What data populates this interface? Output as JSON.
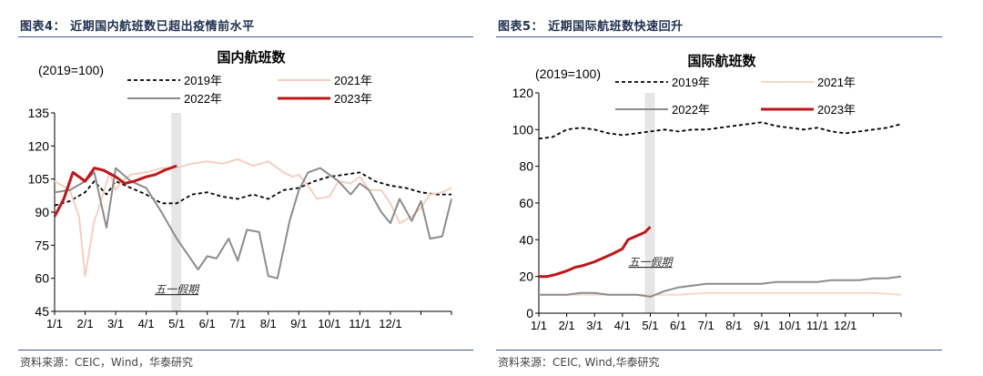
{
  "left": {
    "caption": "图表4：  近期国内航班数已超出疫情前水平",
    "source": "资料来源：CEIC，Wind，华泰研究",
    "chart_data": {
      "type": "line",
      "title": "国内航班数",
      "unit_note": "(2019=100)",
      "ylim": [
        45,
        135
      ],
      "yticks": [
        "135",
        "120",
        "105",
        "90",
        "75",
        "60",
        "45"
      ],
      "xticks": [
        "1/1",
        "2/1",
        "3/1",
        "4/1",
        "5/1",
        "6/1",
        "7/1",
        "8/1",
        "9/1",
        "10/1",
        "11/1",
        "12/1"
      ],
      "annotation": "五一假期",
      "highlight_month": 4.0,
      "series": [
        {
          "name": "2019年",
          "color": "#000000",
          "style": "dashed",
          "x": [
            0,
            0.5,
            1,
            1.3,
            1.7,
            2,
            2.5,
            3,
            3.5,
            4,
            4.5,
            5,
            5.5,
            6,
            6.5,
            7,
            7.5,
            8,
            8.5,
            9,
            9.5,
            10,
            10.5,
            11,
            11.5,
            12,
            12.5,
            13
          ],
          "y": [
            93,
            95,
            99,
            104,
            98,
            104,
            101,
            98,
            94,
            94,
            98,
            99,
            97,
            96,
            98,
            96,
            100,
            101,
            104,
            106,
            107,
            108,
            104,
            102,
            101,
            99,
            98,
            98
          ]
        },
        {
          "name": "2021年",
          "color": "#f5cfc0",
          "style": "solid",
          "x": [
            0,
            0.5,
            0.8,
            1,
            1.3,
            1.5,
            1.8,
            2,
            2.2,
            2.5,
            3,
            3.5,
            4,
            4.5,
            5,
            5.5,
            6,
            6.5,
            7,
            7.5,
            7.8,
            8,
            8.3,
            8.6,
            9,
            9.3,
            9.7,
            10,
            10.3,
            10.7,
            11,
            11.3,
            11.7,
            12,
            12.3,
            12.7,
            13
          ],
          "y": [
            104,
            100,
            88,
            61,
            86,
            94,
            108,
            100,
            104,
            107,
            108,
            110,
            110,
            112,
            113,
            112,
            114,
            111,
            113,
            108,
            106,
            107,
            102,
            96,
            97,
            104,
            103,
            106,
            100,
            100,
            94,
            85,
            88,
            92,
            98,
            99,
            101
          ]
        },
        {
          "name": "2022年",
          "color": "#8c8c8c",
          "style": "solid",
          "x": [
            0,
            0.5,
            1,
            1.3,
            1.7,
            2,
            2.5,
            3,
            3.5,
            4,
            4.3,
            4.7,
            5,
            5.3,
            5.7,
            6,
            6.3,
            6.7,
            7,
            7.3,
            7.7,
            8,
            8.3,
            8.7,
            9,
            9.3,
            9.7,
            10,
            10.3,
            10.7,
            11,
            11.3,
            11.7,
            12,
            12.3,
            12.7,
            13
          ],
          "y": [
            99,
            100,
            104,
            108,
            83,
            110,
            104,
            101,
            90,
            78,
            72,
            64,
            70,
            69,
            78,
            68,
            82,
            81,
            61,
            60,
            86,
            100,
            108,
            110,
            107,
            104,
            98,
            103,
            100,
            90,
            85,
            96,
            86,
            95,
            78,
            79,
            96
          ]
        },
        {
          "name": "2023年",
          "color": "#c0161a",
          "style": "solid",
          "bold": true,
          "x": [
            0,
            0.3,
            0.6,
            1,
            1.3,
            1.6,
            2,
            2.3,
            2.6,
            3,
            3.3,
            3.6,
            4
          ],
          "y": [
            88,
            96,
            108,
            104,
            110,
            109,
            106,
            103,
            104,
            106,
            107,
            109,
            111
          ]
        }
      ]
    }
  },
  "right": {
    "caption": "图表5：  近期国际航班数快速回升",
    "source": "资料来源：CEIC, Wind,华泰研究",
    "chart_data": {
      "type": "line",
      "title": "国际航班数",
      "unit_note": "(2019=100)",
      "ylim": [
        0,
        120
      ],
      "yticks": [
        "120",
        "100",
        "80",
        "60",
        "40",
        "20",
        "0"
      ],
      "xticks": [
        "1/1",
        "2/1",
        "3/1",
        "4/1",
        "5/1",
        "6/1",
        "7/1",
        "8/1",
        "9/1",
        "10/1",
        "11/1",
        "12/1"
      ],
      "annotation": "五一假期",
      "highlight_month": 4.0,
      "series": [
        {
          "name": "2019年",
          "color": "#000000",
          "style": "dashed",
          "x": [
            0,
            0.5,
            1,
            1.5,
            2,
            2.5,
            3,
            3.5,
            4,
            4.5,
            5,
            5.5,
            6,
            6.5,
            7,
            7.5,
            8,
            8.5,
            9,
            9.5,
            10,
            10.5,
            11,
            11.5,
            12,
            12.5,
            13
          ],
          "y": [
            95,
            96,
            100,
            101,
            100,
            98,
            97,
            98,
            99,
            100,
            99,
            100,
            100,
            101,
            102,
            103,
            104,
            102,
            101,
            100,
            101,
            99,
            98,
            99,
            100,
            101,
            103
          ]
        },
        {
          "name": "2021年",
          "color": "#f8d8c8",
          "style": "solid",
          "x": [
            0,
            1,
            2,
            3,
            4,
            5,
            6,
            7,
            8,
            9,
            10,
            11,
            12,
            13
          ],
          "y": [
            10,
            10,
            10,
            10,
            10,
            10,
            11,
            11,
            11,
            11,
            11,
            11,
            11,
            10
          ]
        },
        {
          "name": "2022年",
          "color": "#8c8c8c",
          "style": "solid",
          "x": [
            0,
            0.5,
            1,
            1.5,
            2,
            2.5,
            3,
            3.5,
            4,
            4.5,
            5,
            5.5,
            6,
            6.5,
            7,
            7.5,
            8,
            8.5,
            9,
            9.5,
            10,
            10.5,
            11,
            11.5,
            12,
            12.5,
            13
          ],
          "y": [
            10,
            10,
            10,
            11,
            11,
            10,
            10,
            10,
            9,
            12,
            14,
            15,
            16,
            16,
            16,
            16,
            16,
            17,
            17,
            17,
            17,
            18,
            18,
            18,
            19,
            19,
            20
          ]
        },
        {
          "name": "2023年",
          "color": "#c0161a",
          "style": "solid",
          "bold": true,
          "x": [
            0,
            0.3,
            0.6,
            1,
            1.3,
            1.6,
            2,
            2.3,
            2.6,
            3,
            3.2,
            3.5,
            3.8,
            4
          ],
          "y": [
            20,
            20,
            21,
            23,
            25,
            26,
            28,
            30,
            32,
            35,
            40,
            42,
            44,
            47
          ]
        }
      ]
    }
  }
}
